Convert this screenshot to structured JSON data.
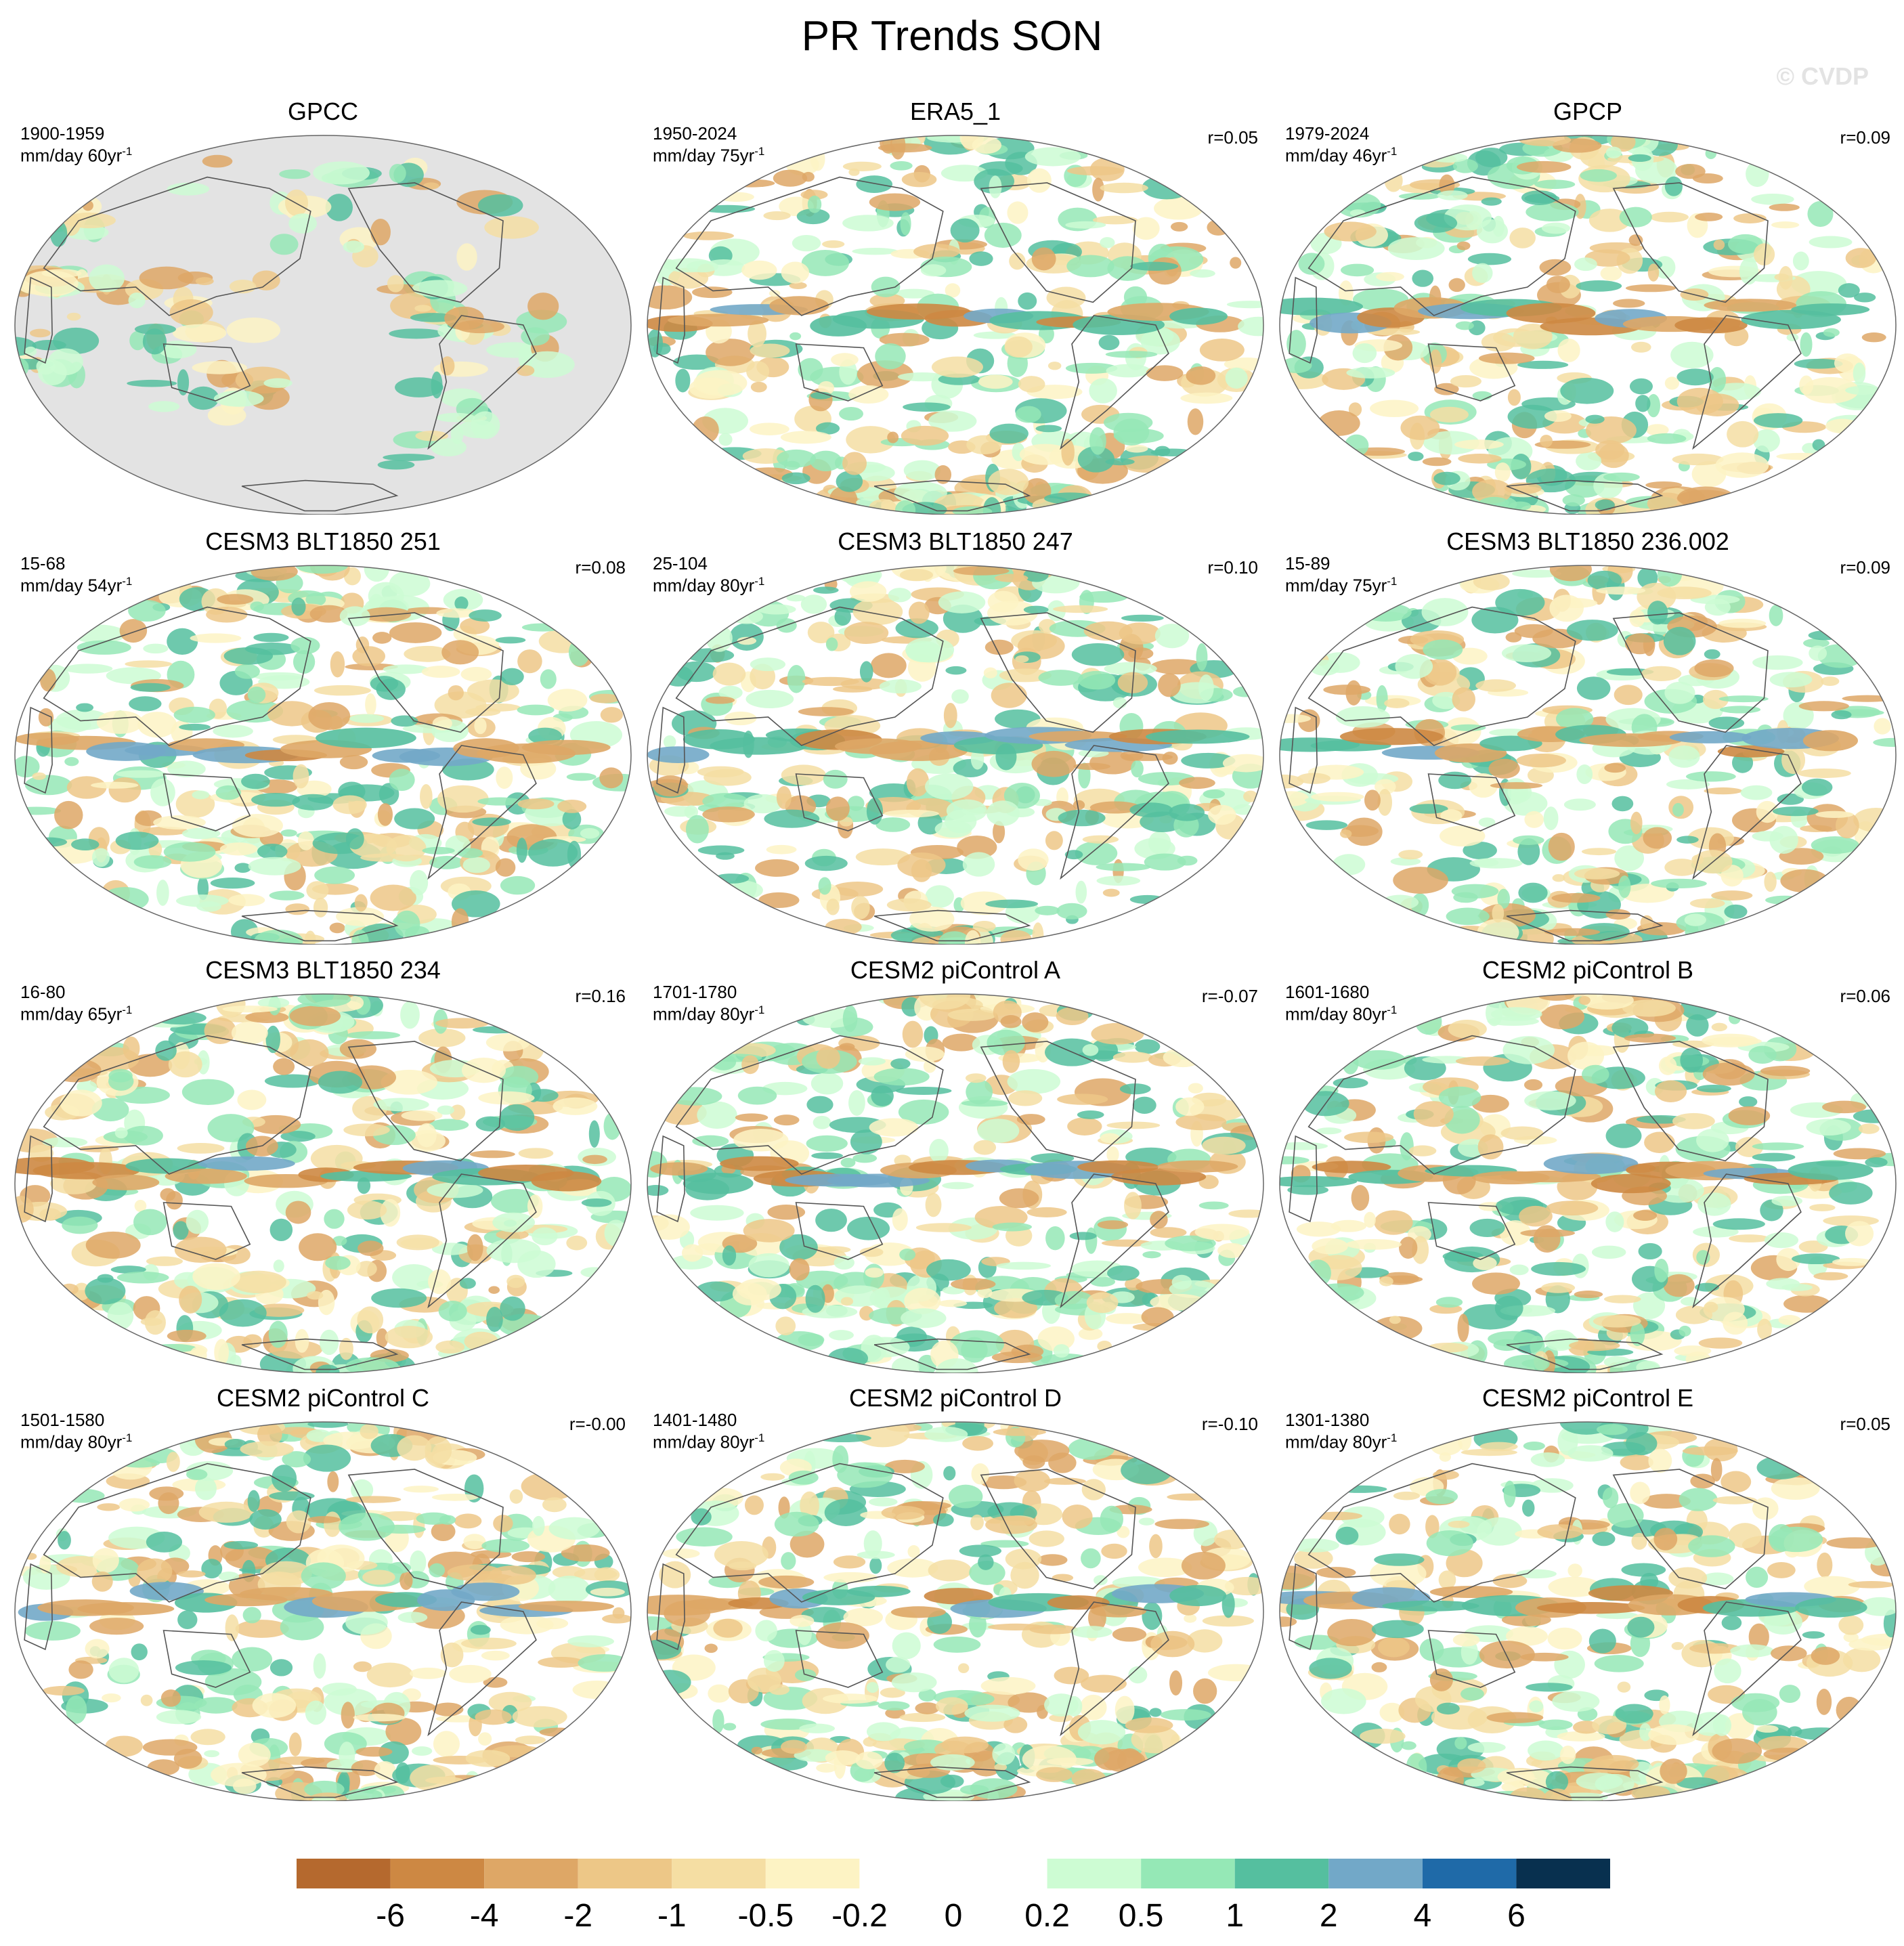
{
  "figure": {
    "title": "PR Trends SON",
    "watermark": "© CVDP"
  },
  "panels": [
    {
      "title": "GPCC",
      "period": "1900-1959",
      "units": "mm/day 60yr",
      "exp": "-1",
      "r": "",
      "masked": true,
      "seed": 3
    },
    {
      "title": "ERA5_1",
      "period": "1950-2024",
      "units": "mm/day 75yr",
      "exp": "-1",
      "r": "r=0.05",
      "masked": false,
      "seed": 11
    },
    {
      "title": "GPCP",
      "period": "1979-2024",
      "units": "mm/day 46yr",
      "exp": "-1",
      "r": "r=0.09",
      "masked": false,
      "seed": 19
    },
    {
      "title": "CESM3 BLT1850 251",
      "period": "15-68",
      "units": "mm/day 54yr",
      "exp": "-1",
      "r": "r=0.08",
      "masked": false,
      "seed": 23
    },
    {
      "title": "CESM3 BLT1850 247",
      "period": "25-104",
      "units": "mm/day 80yr",
      "exp": "-1",
      "r": "r=0.10",
      "masked": false,
      "seed": 29
    },
    {
      "title": "CESM3 BLT1850 236.002",
      "period": "15-89",
      "units": "mm/day 75yr",
      "exp": "-1",
      "r": "r=0.09",
      "masked": false,
      "seed": 31
    },
    {
      "title": "CESM3 BLT1850 234",
      "period": "16-80",
      "units": "mm/day 65yr",
      "exp": "-1",
      "r": "r=0.16",
      "masked": false,
      "seed": 37
    },
    {
      "title": "CESM2 piControl A",
      "period": "1701-1780",
      "units": "mm/day 80yr",
      "exp": "-1",
      "r": "r=-0.07",
      "masked": false,
      "seed": 41
    },
    {
      "title": "CESM2 piControl B",
      "period": "1601-1680",
      "units": "mm/day 80yr",
      "exp": "-1",
      "r": "r=0.06",
      "masked": false,
      "seed": 43
    },
    {
      "title": "CESM2 piControl C",
      "period": "1501-1580",
      "units": "mm/day 80yr",
      "exp": "-1",
      "r": "r=-0.00",
      "masked": false,
      "seed": 47
    },
    {
      "title": "CESM2 piControl D",
      "period": "1401-1480",
      "units": "mm/day 80yr",
      "exp": "-1",
      "r": "r=-0.10",
      "masked": false,
      "seed": 53
    },
    {
      "title": "CESM2 piControl E",
      "period": "1301-1380",
      "units": "mm/day 80yr",
      "exp": "-1",
      "r": "r=0.05",
      "masked": false,
      "seed": 59
    }
  ],
  "colorbar": {
    "labels": [
      "-6",
      "-4",
      "-2",
      "-1",
      "-0.5",
      "-0.2",
      "0",
      "0.2",
      "0.5",
      "1",
      "2",
      "4",
      "6"
    ],
    "colors": [
      "#b5692e",
      "#cd8843",
      "#dea766",
      "#edc787",
      "#f5dea3",
      "#fdf3c4",
      "#ffffff",
      "#ffffff",
      "#cdfcd3",
      "#95e8b6",
      "#55bf9f",
      "#72a8c8",
      "#1f6aa8",
      "#08304f"
    ],
    "mask_color": "#e3e3e3"
  }
}
